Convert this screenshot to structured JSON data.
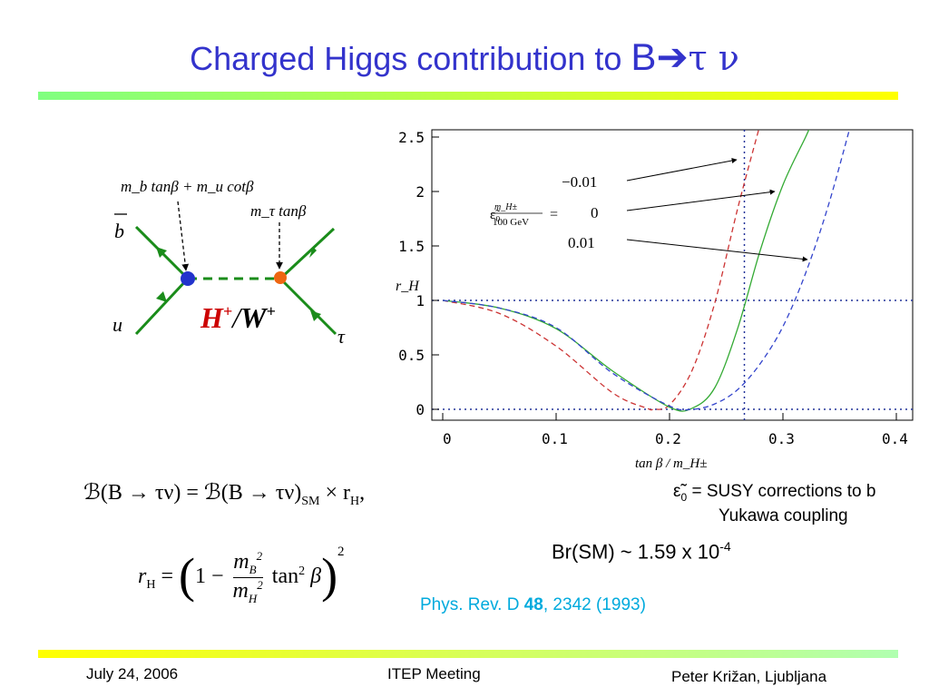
{
  "title": {
    "main": "Charged Higgs contribution to ",
    "b": "B",
    "arrow": "➔",
    "tau_nu": "τ ν"
  },
  "diagram": {
    "label_top_left": "m_b tanβ + m_u cotβ",
    "label_top_right": "m_τ tanβ",
    "bbar": "b",
    "u": "u",
    "tau": "τ",
    "mediator_h": "H",
    "mediator_sep": "/",
    "mediator_w": "W",
    "plus": "+",
    "colors": {
      "line": "#1a8c1a",
      "dot_left": "#2233cc",
      "dot_right": "#ee6611",
      "mediator_h": "#cc0000"
    }
  },
  "chart_data": {
    "type": "line",
    "xlabel": "tan β / m_H±",
    "ylabel": "r_H",
    "xlim": [
      0,
      0.4
    ],
    "ylim": [
      0,
      2.5
    ],
    "xticks": [
      "0",
      "0.1",
      "0.2",
      "0.3",
      "0.4"
    ],
    "yticks": [
      "0",
      "0.5",
      "1",
      "1.5",
      "2",
      "2.5"
    ],
    "legend": {
      "symbol": "ε̃₀",
      "frac_num": "m_H±",
      "frac_den": "100 GeV",
      "equals": "=",
      "values": [
        "−0.01",
        "0",
        "0.01"
      ]
    },
    "reference_lines": {
      "y": [
        0,
        1
      ],
      "x": 0.266
    },
    "series": [
      {
        "epsilon": "-0.01",
        "color": "#cc3333",
        "dash": true,
        "x": [
          0,
          0.05,
          0.1,
          0.15,
          0.18,
          0.186,
          0.2,
          0.22,
          0.24,
          0.26,
          0.28
        ],
        "y": [
          1,
          0.88,
          0.58,
          0.15,
          0.01,
          0,
          0.04,
          0.36,
          0.98,
          1.84,
          2.62
        ]
      },
      {
        "epsilon": "0",
        "color": "#33aa33",
        "dash": false,
        "x": [
          0,
          0.05,
          0.1,
          0.15,
          0.2,
          0.22,
          0.24,
          0.26,
          0.28,
          0.3,
          0.32,
          0.325
        ],
        "y": [
          1,
          0.93,
          0.74,
          0.35,
          0.02,
          0.01,
          0.2,
          0.74,
          1.46,
          2.06,
          2.5,
          2.62
        ]
      },
      {
        "epsilon": "0.01",
        "color": "#3344cc",
        "dash": true,
        "x": [
          0,
          0.05,
          0.1,
          0.15,
          0.2,
          0.22,
          0.24,
          0.26,
          0.28,
          0.3,
          0.32,
          0.34,
          0.36
        ],
        "y": [
          1,
          0.93,
          0.75,
          0.33,
          0.03,
          0,
          0.05,
          0.18,
          0.42,
          0.76,
          1.25,
          1.87,
          2.62
        ]
      }
    ]
  },
  "equations": {
    "line1": "ℬ(B → τν) = ℬ(B → τν)",
    "line1_sub": "SM",
    "line1_tail": " × r",
    "line1_tail_sub": "H",
    "line1_end": ",",
    "line2_lhs": "r",
    "line2_lhs_sub": "H",
    "line2_eq": "=",
    "line2_one_minus": "1 −",
    "frac_num": "m",
    "frac_num_sub": "B",
    "frac_den": "m",
    "frac_den_sub": "H",
    "sq": "2",
    "tan": "tan",
    "beta": "β"
  },
  "susy_note": {
    "symbol": "ε̃",
    "sub": "0",
    "line1": " = SUSY corrections to b",
    "line2": "Yukawa coupling"
  },
  "br_sm": {
    "text": "Br(SM) ~ 1.59 x 10",
    "exp": "-4"
  },
  "reference": {
    "journal": "Phys. Rev. D ",
    "volume": "48",
    "rest": ", 2342 (1993)"
  },
  "footer": {
    "date": "July 24, 2006",
    "event": "ITEP Meeting",
    "author": "Peter Križan, Ljubljana"
  }
}
